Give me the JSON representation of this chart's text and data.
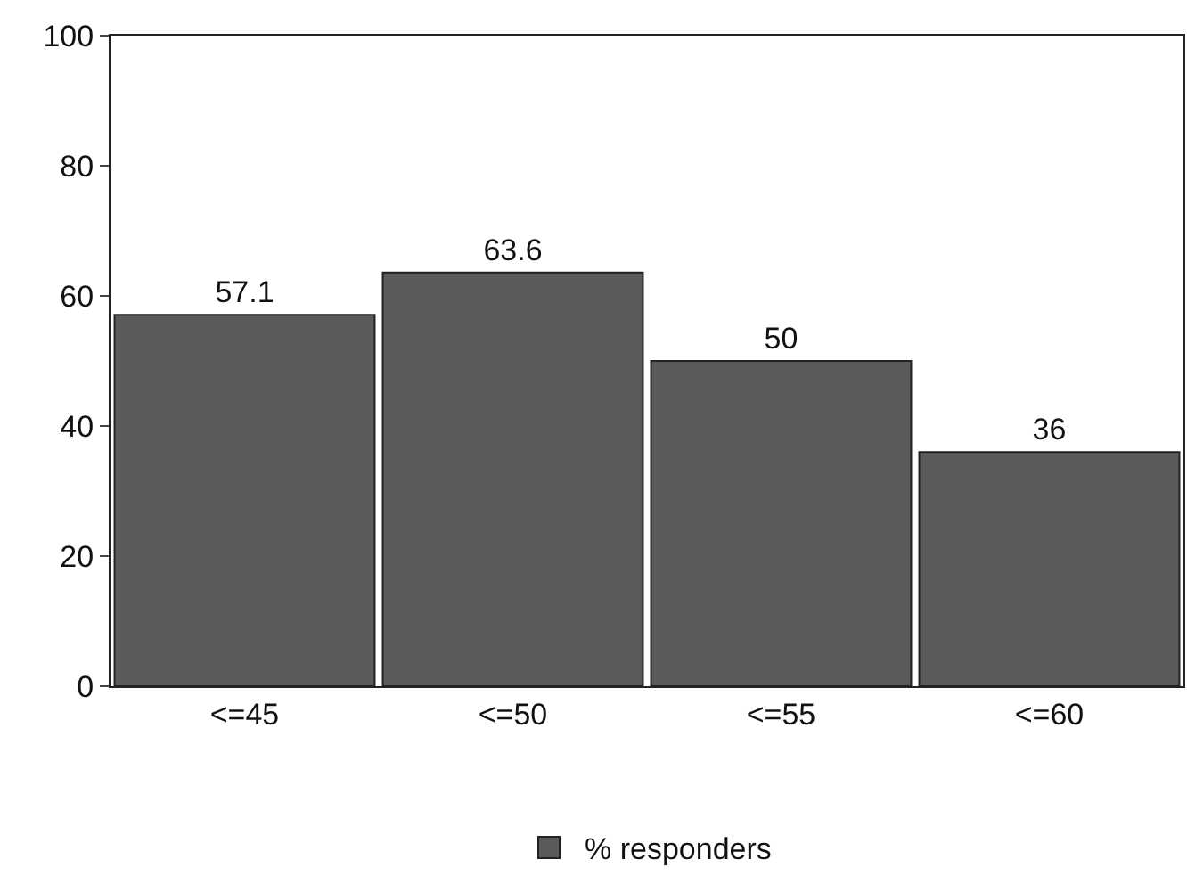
{
  "chart_data": {
    "type": "bar",
    "categories": [
      "<=45",
      "<=50",
      "<=55",
      "<=60"
    ],
    "series": [
      {
        "name": "% responders",
        "color": "#5a5a5a",
        "values": [
          57.1,
          63.6,
          50,
          36
        ]
      }
    ],
    "ylim": [
      0,
      100
    ],
    "yticks": [
      0,
      20,
      40,
      60,
      80,
      100
    ],
    "grid": false,
    "legend": "bottom",
    "data_labels": true
  }
}
